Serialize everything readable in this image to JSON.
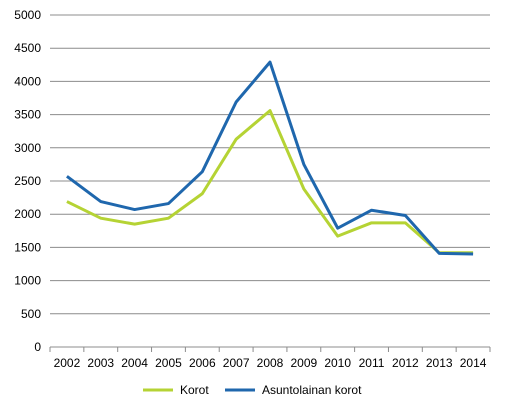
{
  "chart_data": {
    "type": "line",
    "title": "",
    "xlabel": "",
    "ylabel": "",
    "x": [
      "2002",
      "2003",
      "2004",
      "2005",
      "2006",
      "2007",
      "2008",
      "2009",
      "2010",
      "2011",
      "2012",
      "2013",
      "2014"
    ],
    "y_ticks": [
      0,
      500,
      1000,
      1500,
      2000,
      2500,
      3000,
      3500,
      4000,
      4500,
      5000
    ],
    "ylim": [
      0,
      5000
    ],
    "grid": "horizontal",
    "legend_position": "bottom",
    "series": [
      {
        "name": "Korot",
        "color": "#b5d334",
        "values": [
          2190,
          1940,
          1850,
          1940,
          2310,
          3130,
          3560,
          2380,
          1670,
          1870,
          1870,
          1420,
          1420
        ]
      },
      {
        "name": "Asuntolainan korot",
        "color": "#1f67ad",
        "values": [
          2570,
          2190,
          2070,
          2160,
          2640,
          3690,
          4290,
          2750,
          1790,
          2060,
          1980,
          1410,
          1400
        ]
      }
    ]
  }
}
